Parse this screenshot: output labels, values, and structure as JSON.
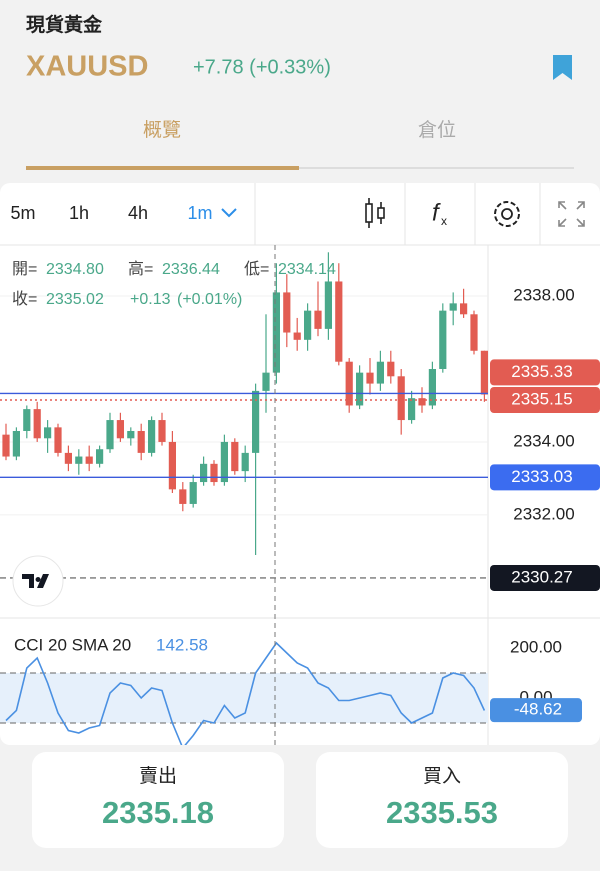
{
  "header": {
    "title": "現貨黃金",
    "symbol": "XAUUSD",
    "change": "+7.78 (+0.33%)"
  },
  "tabs": [
    "概覽",
    "倉位"
  ],
  "toolbar": [
    "5m",
    "1h",
    "4h",
    "1m"
  ],
  "chart": {
    "type": "candlestick",
    "legend": {
      "open_label": "開=",
      "open": "2334.80",
      "high_label": "高=",
      "high": "2336.44",
      "low_label": "低=",
      "low": "2334.14",
      "close_label": "收=",
      "close": "2335.02",
      "change": "+0.13",
      "change_pct": "(+0.01%)"
    },
    "open": [
      2334.2,
      2333.6,
      2334.3,
      2334.9,
      2334.1,
      2334.4,
      2333.7,
      2333.4,
      2333.6,
      2333.4,
      2333.8,
      2334.6,
      2334.1,
      2334.3,
      2333.7,
      2334.6,
      2334.0,
      2332.7,
      2332.3,
      2332.9,
      2333.4,
      2332.9,
      2334.0,
      2333.2,
      2333.7,
      2335.4,
      2335.9,
      2338.1,
      2337.0,
      2336.8,
      2337.6,
      2337.1,
      2338.4,
      2336.2,
      2335.0,
      2335.9,
      2335.6,
      2336.2,
      2335.8,
      2334.6,
      2335.2,
      2335.0,
      2336.0,
      2337.6,
      2337.8,
      2337.5,
      2336.5
    ],
    "high": [
      2334.5,
      2334.4,
      2335.0,
      2335.1,
      2334.6,
      2334.5,
      2333.9,
      2333.8,
      2333.9,
      2333.9,
      2334.8,
      2334.8,
      2334.4,
      2334.5,
      2334.7,
      2334.8,
      2334.3,
      2332.9,
      2333.1,
      2333.6,
      2333.5,
      2334.2,
      2334.1,
      2333.9,
      2335.6,
      2337.5,
      2338.9,
      2338.6,
      2337.4,
      2337.8,
      2338.4,
      2339.2,
      2338.9,
      2336.3,
      2336.1,
      2336.3,
      2336.5,
      2336.5,
      2336.0,
      2335.4,
      2335.5,
      2336.2,
      2337.8,
      2338.1,
      2338.2,
      2337.6,
      2336.5
    ],
    "low": [
      2333.5,
      2333.5,
      2334.1,
      2334.0,
      2333.7,
      2333.6,
      2333.2,
      2333.1,
      2333.2,
      2333.3,
      2333.7,
      2334.0,
      2333.9,
      2333.5,
      2333.6,
      2333.9,
      2332.6,
      2332.1,
      2332.2,
      2332.8,
      2332.8,
      2332.8,
      2333.1,
      2332.9,
      2330.9,
      2334.8,
      2335.6,
      2336.6,
      2336.5,
      2336.5,
      2336.9,
      2336.8,
      2336.1,
      2334.8,
      2334.9,
      2335.3,
      2335.4,
      2335.6,
      2334.2,
      2334.5,
      2334.8,
      2334.9,
      2335.9,
      2337.2,
      2337.4,
      2336.4,
      2335.1
    ],
    "close": [
      2333.6,
      2334.3,
      2334.9,
      2334.1,
      2334.4,
      2333.7,
      2333.4,
      2333.6,
      2333.4,
      2333.8,
      2334.6,
      2334.1,
      2334.3,
      2333.7,
      2334.6,
      2334.0,
      2332.7,
      2332.3,
      2332.9,
      2333.4,
      2332.9,
      2334.0,
      2333.2,
      2333.7,
      2335.4,
      2335.9,
      2338.1,
      2337.0,
      2336.8,
      2337.6,
      2337.1,
      2338.4,
      2336.2,
      2335.0,
      2335.9,
      2335.6,
      2336.2,
      2335.8,
      2334.6,
      2335.2,
      2335.0,
      2336.0,
      2337.6,
      2337.8,
      2337.5,
      2336.5,
      2335.3
    ],
    "up_color": "#4aa88a",
    "down_color": "#e25c52",
    "ylim": [
      2329.2,
      2339.4
    ],
    "yticks": [
      {
        "value": 2338,
        "label": "2338.00"
      },
      {
        "value": 2334,
        "label": "2334.00"
      },
      {
        "value": 2332,
        "label": "2332.00"
      }
    ],
    "price_tags": [
      {
        "value": 2335.33,
        "color": "#e25c52",
        "line_color": "#3b5bdb",
        "line_style": "solid"
      },
      {
        "value": 2335.15,
        "color": "#e25c52",
        "line_color": "#e25c52",
        "line_style": "dotted"
      },
      {
        "value": 2333.03,
        "color": "#3b6cf0",
        "line_color": "#3b5bdb",
        "line_style": "solid"
      },
      {
        "value": 2330.27,
        "color": "#131722",
        "line_color": "#777777",
        "line_style": "dashed"
      }
    ]
  },
  "indicator": {
    "type": "line",
    "name": "CCI 20 SMA 20",
    "reading": "142.58",
    "color": "#4a90e2",
    "values": [
      -90,
      -50,
      120,
      160,
      60,
      -60,
      -130,
      -140,
      -120,
      -110,
      20,
      60,
      50,
      0,
      40,
      30,
      -100,
      -200,
      -150,
      -90,
      -100,
      -30,
      -80,
      -60,
      100,
      160,
      220,
      180,
      140,
      120,
      60,
      40,
      -10,
      -10,
      0,
      10,
      20,
      10,
      -60,
      -100,
      -80,
      -60,
      80,
      100,
      90,
      40,
      -50
    ],
    "ylim": [
      -188,
      320
    ],
    "yticks": [
      {
        "value": 200,
        "label": "200.00"
      },
      {
        "value": 0,
        "label": "0.00"
      }
    ],
    "band": [
      100,
      -100
    ],
    "last": -48.62
  },
  "buttons": [
    {
      "label": "賣出",
      "price": "2335.18"
    },
    {
      "label": "買入",
      "price": "2335.53"
    }
  ]
}
